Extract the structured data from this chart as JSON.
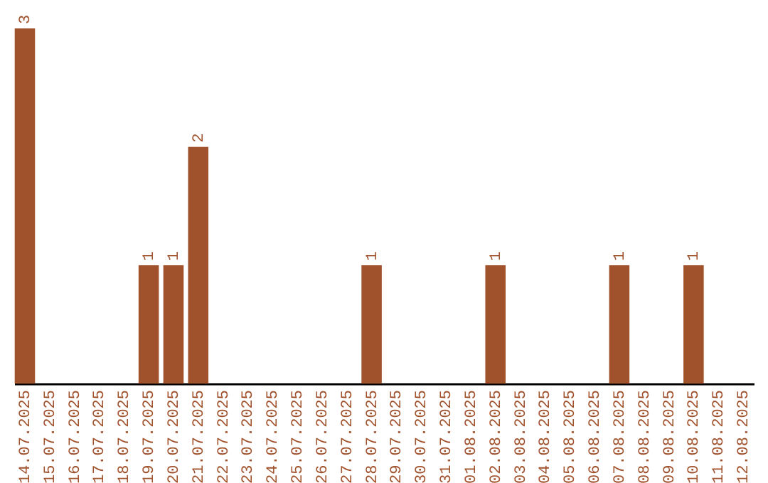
{
  "chart_data": {
    "type": "bar",
    "categories": [
      "14.07.2025",
      "15.07.2025",
      "16.07.2025",
      "17.07.2025",
      "18.07.2025",
      "19.07.2025",
      "20.07.2025",
      "21.07.2025",
      "22.07.2025",
      "23.07.2025",
      "24.07.2025",
      "25.07.2025",
      "26.07.2025",
      "27.07.2025",
      "28.07.2025",
      "29.07.2025",
      "30.07.2025",
      "31.07.2025",
      "01.08.2025",
      "02.08.2025",
      "03.08.2025",
      "04.08.2025",
      "05.08.2025",
      "06.08.2025",
      "07.08.2025",
      "08.08.2025",
      "09.08.2025",
      "10.08.2025",
      "11.08.2025",
      "12.08.2025"
    ],
    "values": [
      3,
      0,
      0,
      0,
      0,
      1,
      1,
      2,
      0,
      0,
      0,
      0,
      0,
      0,
      1,
      0,
      0,
      0,
      0,
      1,
      0,
      0,
      0,
      0,
      1,
      0,
      0,
      1,
      0,
      0
    ],
    "value_labels": [
      "3",
      null,
      null,
      null,
      null,
      "1",
      "1",
      "2",
      null,
      null,
      null,
      null,
      null,
      null,
      "1",
      null,
      null,
      null,
      null,
      "1",
      null,
      null,
      null,
      null,
      "1",
      null,
      null,
      "1",
      null,
      null
    ],
    "color": "#a0522d",
    "ylim": [
      0,
      3
    ],
    "tick_labels": "x"
  }
}
